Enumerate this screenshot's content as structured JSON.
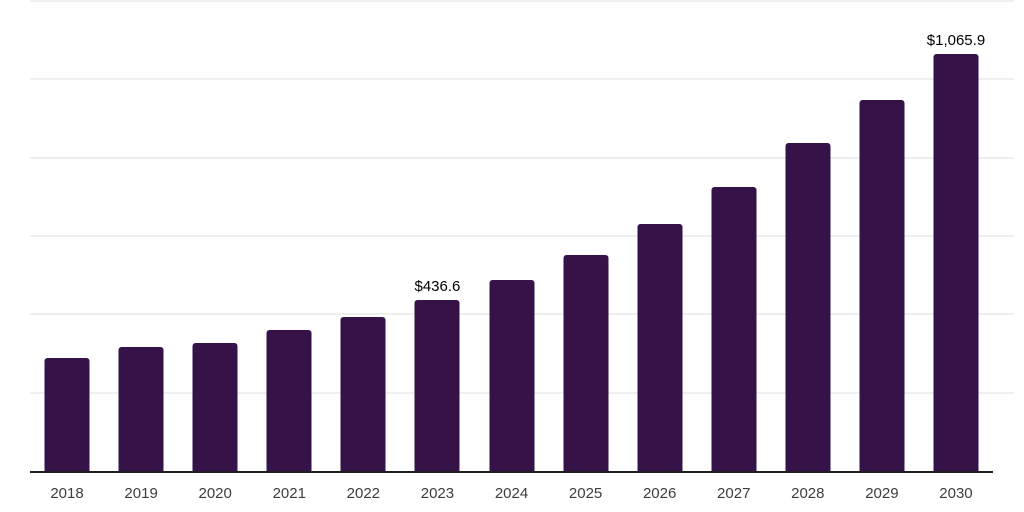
{
  "page": {
    "background": "#ffffff"
  },
  "chart_data": {
    "type": "bar",
    "title": "",
    "xlabel": "",
    "ylabel": "",
    "categories": [
      "2018",
      "2019",
      "2020",
      "2021",
      "2022",
      "2023",
      "2024",
      "2025",
      "2026",
      "2027",
      "2028",
      "2029",
      "2030"
    ],
    "values": [
      289.6,
      317.6,
      327.9,
      359.9,
      393.0,
      436.6,
      487.2,
      551.9,
      629.9,
      726.0,
      837.2,
      946.7,
      1065.9
    ],
    "data_labels": [
      "",
      "",
      "",
      "",
      "",
      "$436.6",
      "",
      "",
      "",
      "",
      "",
      "",
      "$1,065.9"
    ],
    "ylim": [
      0,
      1200
    ],
    "gridline_step": 200,
    "grid": "horizontal light-gray gridlines, no y-axis tick labels",
    "legend": "none",
    "bar_color": "#351349",
    "axis_line_color": "#1f1f1f",
    "gridline_color": "#efefef",
    "tick_label_color": "#3d3d3d",
    "data_label_color": "#000000"
  }
}
